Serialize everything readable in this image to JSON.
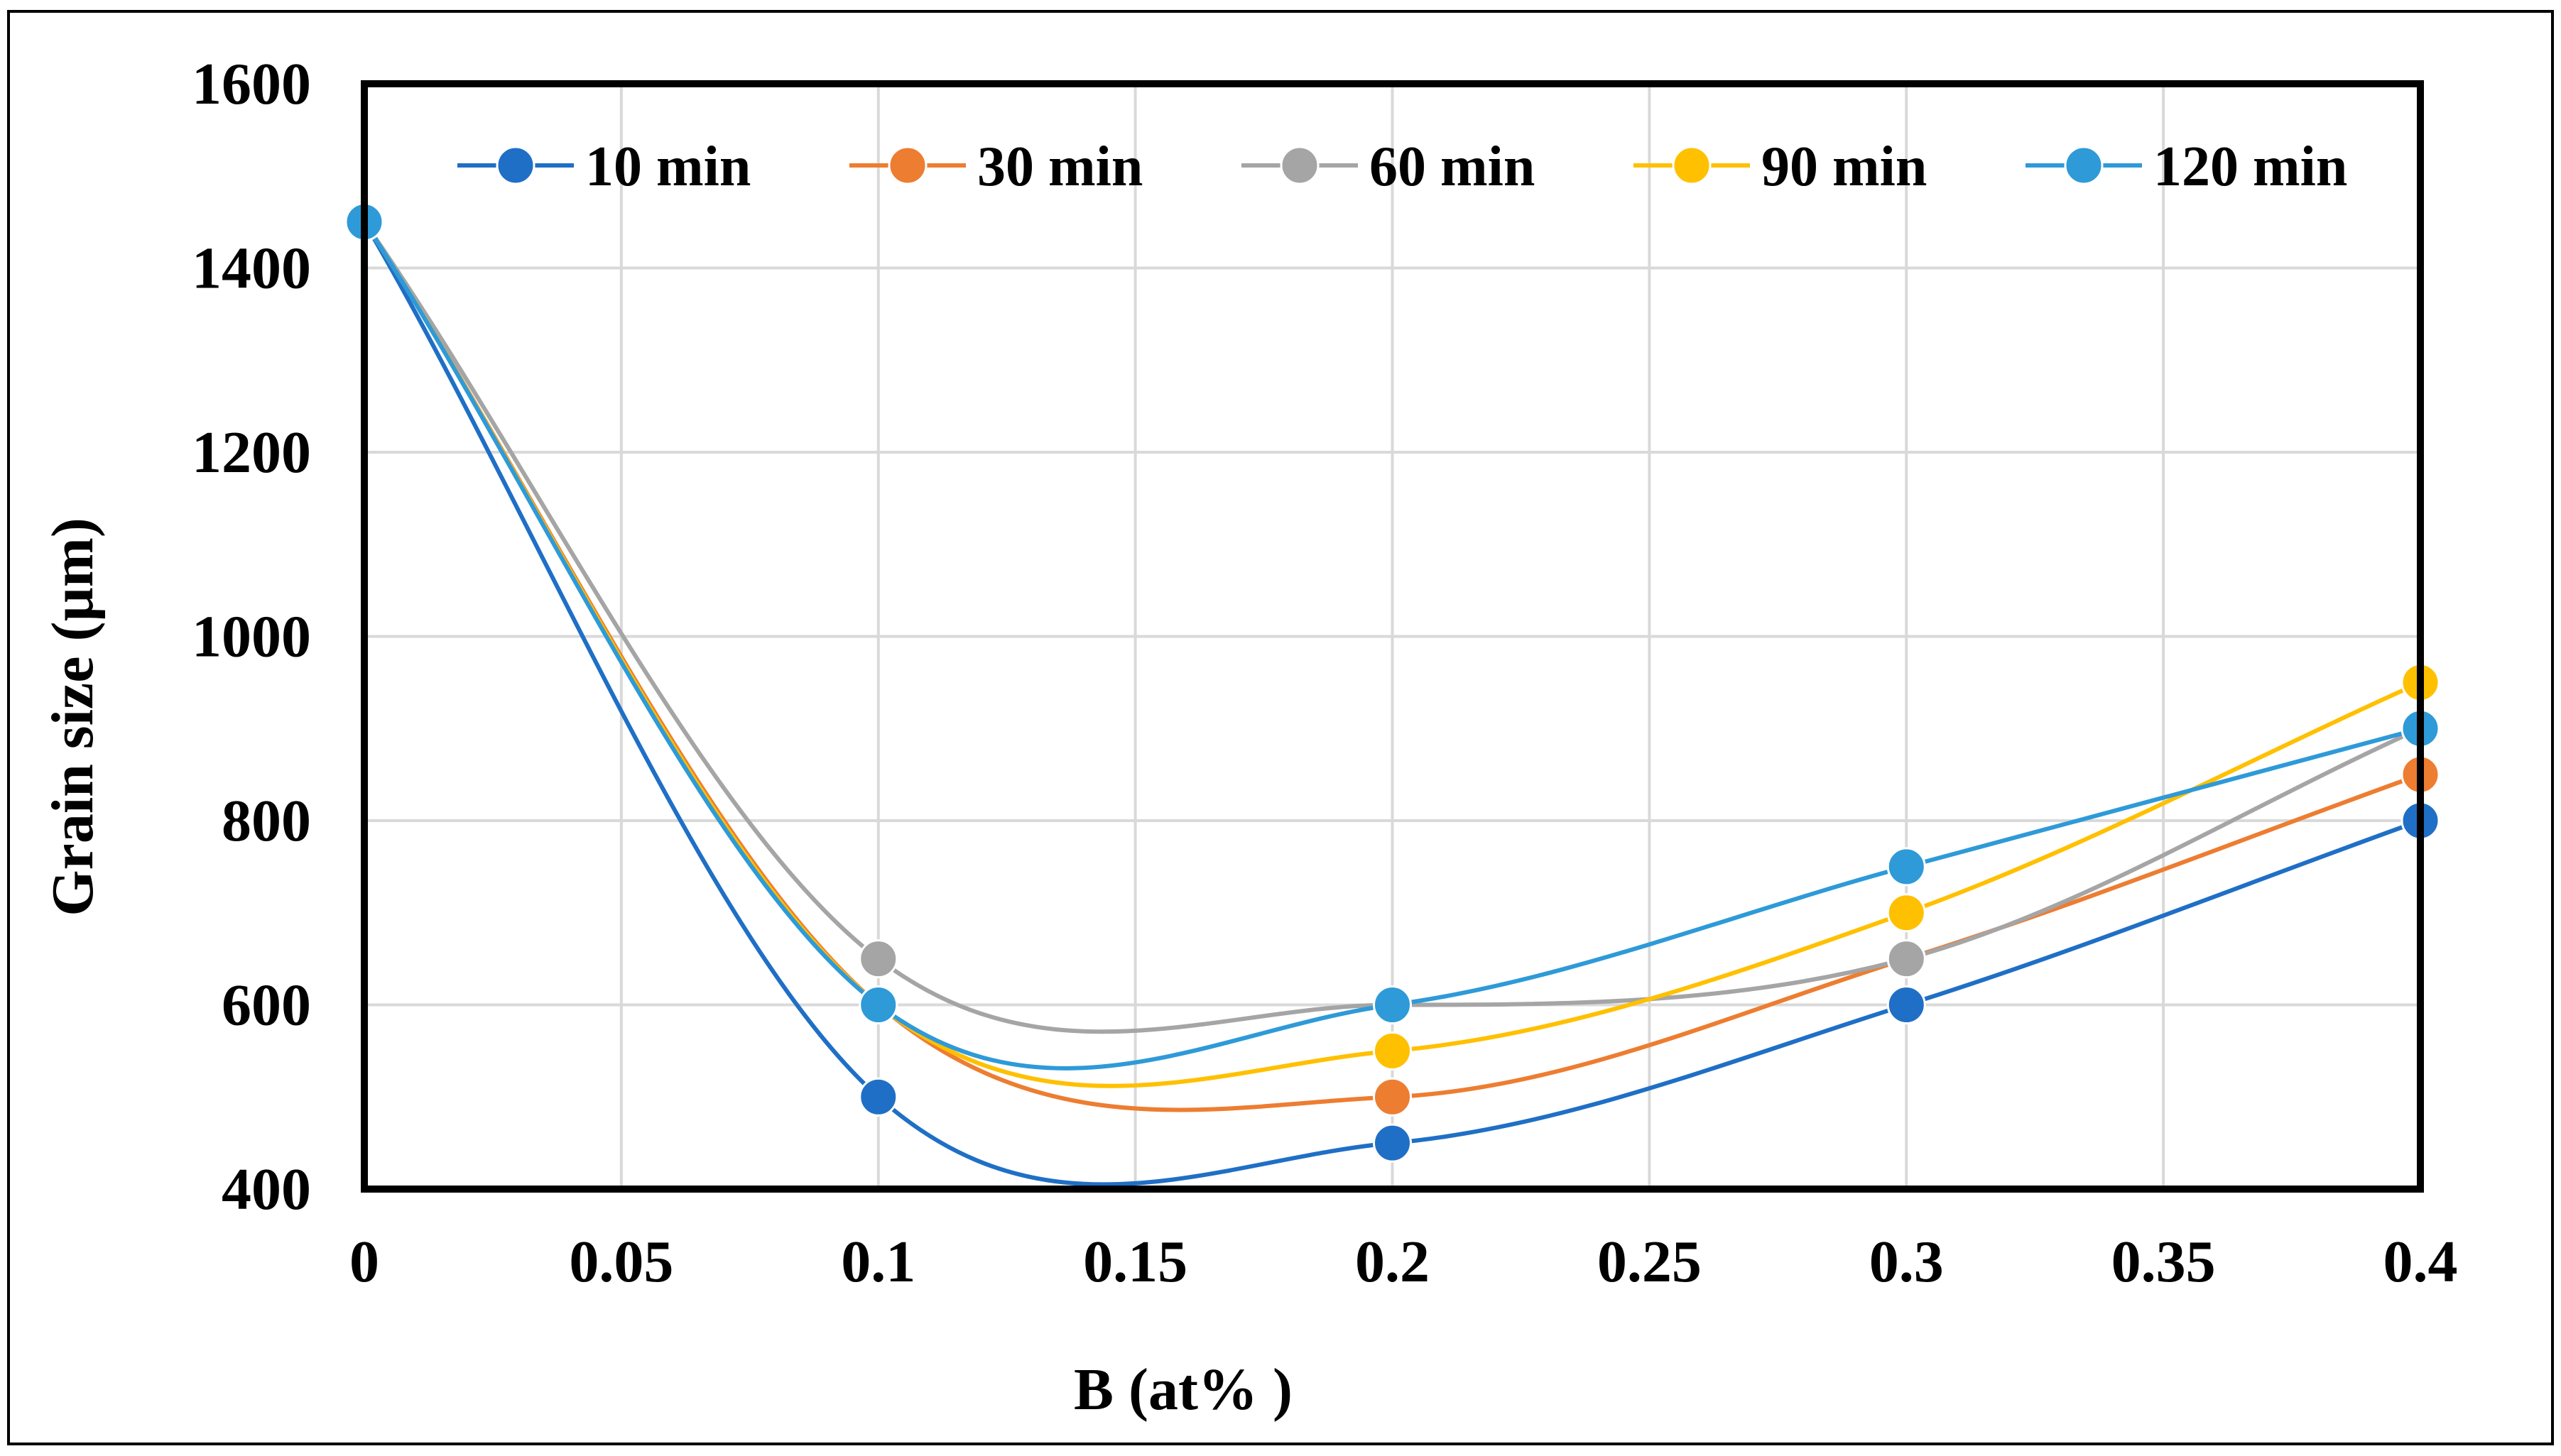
{
  "chart_data": {
    "type": "line",
    "title": "",
    "xlabel": "B  (at% )",
    "ylabel": "Grain size  (µm)",
    "x": [
      0,
      0.1,
      0.2,
      0.3,
      0.4
    ],
    "xlim": [
      0,
      0.4
    ],
    "ylim": [
      400,
      1600
    ],
    "xticks": [
      "0",
      "0.05",
      "0.1",
      "0.15",
      "0.2",
      "0.25",
      "0.3",
      "0.35",
      "0.4"
    ],
    "yticks": [
      "400",
      "600",
      "800",
      "1000",
      "1200",
      "1400",
      "1600"
    ],
    "grid": true,
    "smooth": true,
    "legend_position": "top",
    "series": [
      {
        "name": "10 min",
        "color": "#1f6fc6",
        "values": [
          1450,
          500,
          450,
          600,
          800
        ]
      },
      {
        "name": "30 min",
        "color": "#ed7d31",
        "values": [
          1450,
          600,
          500,
          650,
          850
        ]
      },
      {
        "name": "60 min",
        "color": "#a5a5a5",
        "values": [
          1450,
          650,
          600,
          650,
          900
        ]
      },
      {
        "name": "90 min",
        "color": "#ffc000",
        "values": [
          1450,
          600,
          550,
          700,
          950
        ]
      },
      {
        "name": "120 min",
        "color": "#2e9ad8",
        "values": [
          1450,
          600,
          600,
          750,
          900
        ]
      }
    ]
  }
}
